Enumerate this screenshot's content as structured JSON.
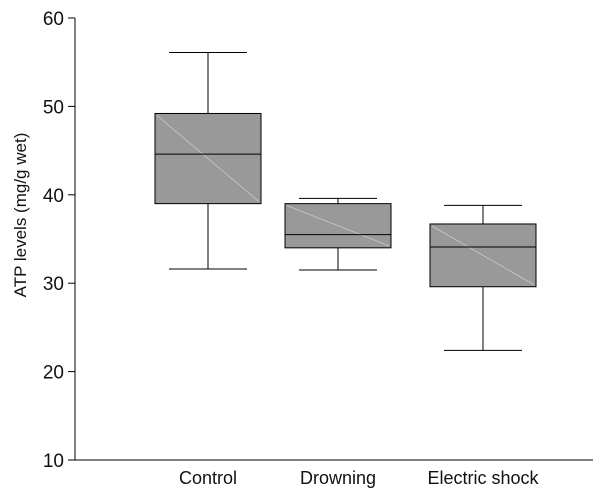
{
  "chart_data": {
    "type": "box",
    "ylabel": "ATP levels (mg/g wet)",
    "xlabel": "",
    "title": "",
    "ylim": [
      10,
      60
    ],
    "yticks": [
      10,
      20,
      30,
      40,
      50,
      60
    ],
    "grid": false,
    "categories": [
      "Control",
      "Drowning",
      "Electric shock"
    ],
    "boxes": [
      {
        "category": "Control",
        "min": 31.6,
        "q1": 39.0,
        "median": 44.6,
        "q3": 49.2,
        "max": 56.1
      },
      {
        "category": "Drowning",
        "min": 31.5,
        "q1": 34.0,
        "median": 35.5,
        "q3": 39.0,
        "max": 39.6
      },
      {
        "category": "Electric shock",
        "min": 22.4,
        "q1": 29.6,
        "median": 34.1,
        "q3": 36.7,
        "max": 38.8
      }
    ],
    "colors": {
      "box_fill": "#999999",
      "line": "#000000"
    }
  }
}
